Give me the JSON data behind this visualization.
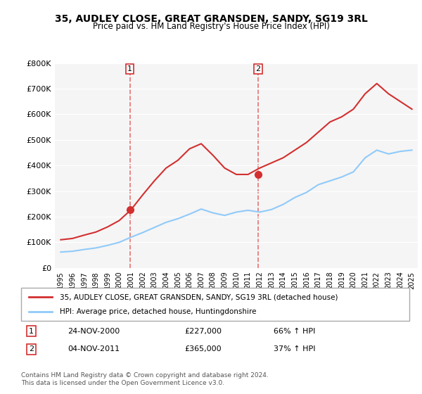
{
  "title": "35, AUDLEY CLOSE, GREAT GRANSDEN, SANDY, SG19 3RL",
  "subtitle": "Price paid vs. HM Land Registry's House Price Index (HPI)",
  "ylabel_ticks": [
    "£0",
    "£100K",
    "£200K",
    "£300K",
    "£400K",
    "£500K",
    "£600K",
    "£700K",
    "£800K"
  ],
  "ytick_values": [
    0,
    100000,
    200000,
    300000,
    400000,
    500000,
    600000,
    700000,
    800000
  ],
  "ylim": [
    0,
    800000
  ],
  "legend_line1": "35, AUDLEY CLOSE, GREAT GRANSDEN, SANDY, SG19 3RL (detached house)",
  "legend_line2": "HPI: Average price, detached house, Huntingdonshire",
  "transaction1_date": "24-NOV-2000",
  "transaction1_price": "£227,000",
  "transaction1_hpi": "66% ↑ HPI",
  "transaction1_year": 2000.9,
  "transaction2_date": "04-NOV-2011",
  "transaction2_price": "£365,000",
  "transaction2_hpi": "37% ↑ HPI",
  "transaction2_year": 2011.85,
  "footnote": "Contains HM Land Registry data © Crown copyright and database right 2024.\nThis data is licensed under the Open Government Licence v3.0.",
  "line_color_red": "#d32f2f",
  "line_color_blue": "#90caf9",
  "vline_color": "#e57373",
  "background_color": "#ffffff",
  "plot_bg_color": "#f5f5f5",
  "hpi_data_years": [
    1995,
    1996,
    1997,
    1998,
    1999,
    2000,
    2001,
    2002,
    2003,
    2004,
    2005,
    2006,
    2007,
    2008,
    2009,
    2010,
    2011,
    2012,
    2013,
    2014,
    2015,
    2016,
    2017,
    2018,
    2019,
    2020,
    2021,
    2022,
    2023,
    2024,
    2025
  ],
  "hpi_values": [
    62000,
    65000,
    72000,
    78000,
    88000,
    100000,
    120000,
    138000,
    158000,
    178000,
    192000,
    210000,
    230000,
    215000,
    205000,
    218000,
    225000,
    218000,
    228000,
    248000,
    275000,
    295000,
    325000,
    340000,
    355000,
    375000,
    430000,
    460000,
    445000,
    455000,
    460000
  ],
  "price_data_years": [
    1995,
    1996,
    1997,
    1998,
    1999,
    2000,
    2001,
    2002,
    2003,
    2004,
    2005,
    2006,
    2007,
    2008,
    2009,
    2010,
    2011,
    2012,
    2013,
    2014,
    2015,
    2016,
    2017,
    2018,
    2019,
    2020,
    2021,
    2022,
    2023,
    2024,
    2025
  ],
  "price_values": [
    110000,
    115000,
    128000,
    140000,
    160000,
    185000,
    227000,
    285000,
    340000,
    390000,
    420000,
    465000,
    485000,
    440000,
    390000,
    365000,
    365000,
    390000,
    410000,
    430000,
    460000,
    490000,
    530000,
    570000,
    590000,
    620000,
    680000,
    720000,
    680000,
    650000,
    620000
  ]
}
